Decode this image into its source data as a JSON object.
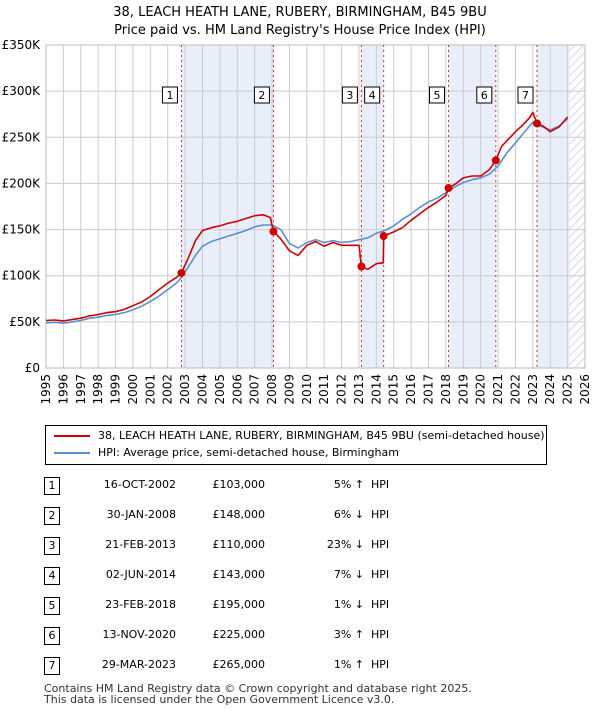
{
  "chart_title": {
    "line1": "38, LEACH HEATH LANE, RUBERY, BIRMINGHAM, B45 9BU",
    "line2": "Price paid vs. HM Land Registry's House Price Index (HPI)"
  },
  "colors": {
    "property_line": "#cc0000",
    "hpi_line": "#5b8fd0",
    "shade": "#e8eefa",
    "hatch": "#cfd8e6",
    "grid": "#cccccc",
    "marker": "#cc0000",
    "vline": "#cc0000"
  },
  "chart_data": {
    "type": "line",
    "title": "Price paid vs. HM Land Registry's House Price Index (HPI)",
    "xlim": [
      1995,
      2026
    ],
    "ylim": [
      0,
      350000
    ],
    "x_ticks": [
      1995,
      1996,
      1997,
      1998,
      1999,
      2000,
      2001,
      2002,
      2003,
      2004,
      2005,
      2006,
      2007,
      2008,
      2009,
      2010,
      2011,
      2012,
      2013,
      2014,
      2015,
      2016,
      2017,
      2018,
      2019,
      2020,
      2021,
      2022,
      2023,
      2024,
      2025,
      2026
    ],
    "y_ticks": [
      0,
      50000,
      100000,
      150000,
      200000,
      250000,
      300000,
      350000
    ],
    "y_tick_labels": [
      "£0",
      "£50K",
      "£100K",
      "£150K",
      "£200K",
      "£250K",
      "£300K",
      "£350K"
    ],
    "forecast_start": 2025.1,
    "shaded_periods": [
      [
        2002.79,
        2008.08
      ],
      [
        2013.14,
        2014.42
      ],
      [
        2018.15,
        2020.87
      ],
      [
        2023.24,
        2025.1
      ]
    ],
    "series": [
      {
        "name": "38, LEACH HEATH LANE, RUBERY, BIRMINGHAM, B45 9BU (semi-detached house)",
        "x": [
          1995,
          1995.5,
          1996,
          1996.5,
          1997,
          1997.5,
          1998,
          1998.5,
          1999,
          1999.5,
          2000,
          2000.5,
          2001,
          2001.5,
          2002,
          2002.5,
          2002.79,
          2003.2,
          2003.6,
          2004,
          2004.5,
          2005,
          2005.5,
          2006,
          2006.5,
          2007,
          2007.5,
          2007.9,
          2008.08,
          2008.5,
          2009,
          2009.5,
          2010,
          2010.5,
          2011,
          2011.5,
          2012,
          2012.5,
          2013.0,
          2013.14,
          2013.5,
          2014.0,
          2014.4,
          2014.42,
          2015,
          2015.5,
          2016,
          2016.5,
          2017,
          2017.5,
          2018.0,
          2018.15,
          2018.6,
          2019,
          2019.5,
          2020,
          2020.5,
          2020.87,
          2021.2,
          2021.6,
          2022,
          2022.4,
          2022.8,
          2023.0,
          2023.24,
          2023.6,
          2024,
          2024.5,
          2025
        ],
        "values": [
          51500,
          52000,
          51000,
          52500,
          54000,
          56500,
          58000,
          60000,
          61000,
          63500,
          67500,
          71500,
          77500,
          85000,
          92000,
          98000,
          103000,
          120000,
          138000,
          149000,
          152000,
          154000,
          157000,
          159000,
          162000,
          165000,
          166000,
          163000,
          148000,
          140000,
          127000,
          122000,
          133000,
          137000,
          132000,
          136000,
          133000,
          133000,
          133000,
          110000,
          107000,
          113000,
          114000,
          143000,
          147500,
          152000,
          160000,
          167000,
          174000,
          180000,
          187000,
          195000,
          200000,
          206000,
          208000,
          208000,
          215000,
          225000,
          240000,
          248000,
          256000,
          263000,
          271000,
          277000,
          265000,
          262000,
          256000,
          261000,
          272000
        ]
      },
      {
        "name": "HPI: Average price, semi-detached house, Birmingham",
        "x": [
          1995,
          1995.5,
          1996,
          1996.5,
          1997,
          1997.5,
          1998,
          1998.5,
          1999,
          1999.5,
          2000,
          2000.5,
          2001,
          2001.5,
          2002,
          2002.5,
          2002.79,
          2003.2,
          2003.6,
          2004,
          2004.5,
          2005,
          2005.5,
          2006,
          2006.5,
          2007,
          2007.5,
          2008.0,
          2008.5,
          2009,
          2009.5,
          2010,
          2010.5,
          2011,
          2011.5,
          2012,
          2012.5,
          2013,
          2013.5,
          2014,
          2014.5,
          2015,
          2015.5,
          2016,
          2016.5,
          2017,
          2017.5,
          2018,
          2018.5,
          2019,
          2019.5,
          2020,
          2020.5,
          2021,
          2021.5,
          2022,
          2022.4,
          2022.8,
          2023.0,
          2023.3,
          2023.6,
          2024,
          2024.5,
          2025
        ],
        "values": [
          49000,
          49500,
          48500,
          50000,
          51500,
          54000,
          55000,
          57000,
          58000,
          60000,
          63000,
          67000,
          72000,
          78000,
          85000,
          92000,
          98000,
          110000,
          122000,
          132000,
          137000,
          140000,
          143000,
          146000,
          149000,
          153000,
          155000,
          155000,
          150000,
          135000,
          130000,
          136000,
          139000,
          136000,
          138000,
          136000,
          137000,
          139000,
          141000,
          146000,
          149000,
          154000,
          161000,
          167000,
          174000,
          180000,
          184000,
          190000,
          196000,
          201000,
          204000,
          206000,
          210000,
          219000,
          233000,
          244000,
          253000,
          262000,
          266000,
          263000,
          261000,
          258000,
          262000,
          270000
        ]
      }
    ],
    "sales": [
      {
        "n": "1",
        "x": 2002.79,
        "y": 103000
      },
      {
        "n": "2",
        "x": 2008.08,
        "y": 148000
      },
      {
        "n": "3",
        "x": 2013.14,
        "y": 110000
      },
      {
        "n": "4",
        "x": 2014.42,
        "y": 143000
      },
      {
        "n": "5",
        "x": 2018.15,
        "y": 195000
      },
      {
        "n": "6",
        "x": 2020.87,
        "y": 225000
      },
      {
        "n": "7",
        "x": 2023.24,
        "y": 265000
      }
    ]
  },
  "legend": {
    "property_label": "38, LEACH HEATH LANE, RUBERY, BIRMINGHAM, B45 9BU (semi-detached house)",
    "hpi_label": "HPI: Average price, semi-detached house, Birmingham"
  },
  "sales_table": [
    {
      "num": "1",
      "date": "16-OCT-2002",
      "price": "£103,000",
      "pct": "5% ↑",
      "hpi": "HPI"
    },
    {
      "num": "2",
      "date": "30-JAN-2008",
      "price": "£148,000",
      "pct": "6% ↓",
      "hpi": "HPI"
    },
    {
      "num": "3",
      "date": "21-FEB-2013",
      "price": "£110,000",
      "pct": "23% ↓",
      "hpi": "HPI"
    },
    {
      "num": "4",
      "date": "02-JUN-2014",
      "price": "£143,000",
      "pct": "7% ↓",
      "hpi": "HPI"
    },
    {
      "num": "5",
      "date": "23-FEB-2018",
      "price": "£195,000",
      "pct": "1% ↓",
      "hpi": "HPI"
    },
    {
      "num": "6",
      "date": "13-NOV-2020",
      "price": "£225,000",
      "pct": "3% ↑",
      "hpi": "HPI"
    },
    {
      "num": "7",
      "date": "29-MAR-2023",
      "price": "£265,000",
      "pct": "1% ↑",
      "hpi": "HPI"
    }
  ],
  "footer": {
    "line1": "Contains HM Land Registry data © Crown copyright and database right 2025.",
    "line2": "This data is licensed under the Open Government Licence v3.0."
  }
}
